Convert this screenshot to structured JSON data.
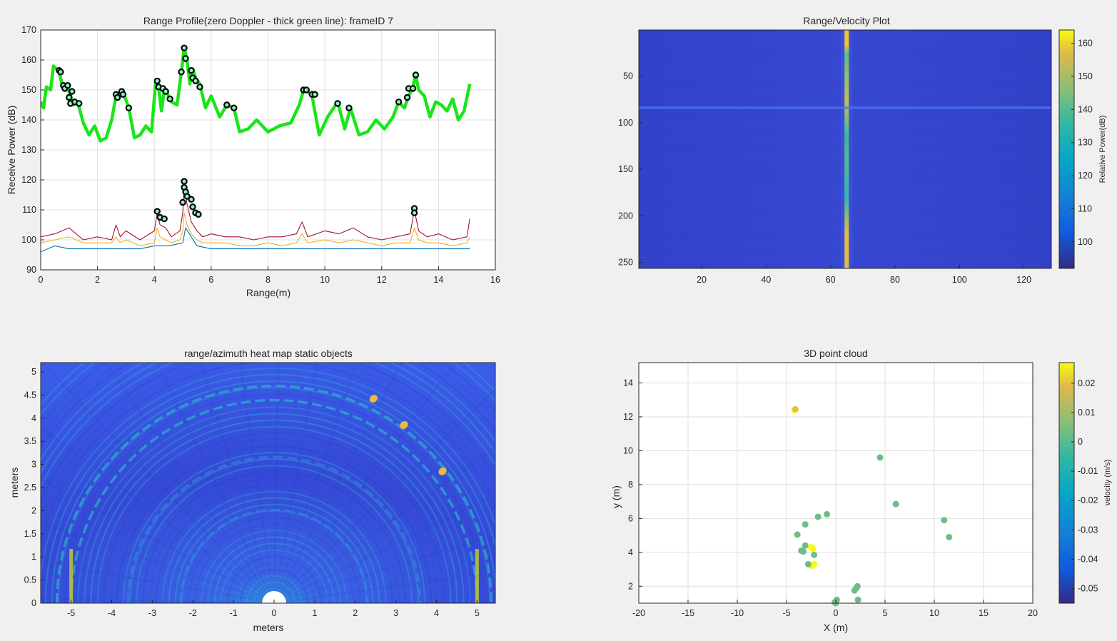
{
  "figure": {
    "background": "#f0f0f0"
  },
  "chart_data": [
    {
      "id": "range-profile",
      "type": "line",
      "title": "Range Profile(zero Doppler - thick green line): frameID 7",
      "xlabel": "Range(m)",
      "ylabel": "Receive Power (dB)",
      "xlim": [
        0,
        16
      ],
      "ylim": [
        90,
        170
      ],
      "xticks": [
        "0",
        "2",
        "4",
        "6",
        "8",
        "10",
        "12",
        "14",
        "16"
      ],
      "yticks": [
        "90",
        "100",
        "110",
        "120",
        "130",
        "140",
        "150",
        "160",
        "170"
      ],
      "grid": true,
      "series": [
        {
          "role": "zero-doppler",
          "color": "#19e619",
          "x": [
            0,
            0.1,
            0.2,
            0.35,
            0.45,
            0.55,
            0.65,
            0.75,
            0.85,
            0.95,
            1.05,
            1.15,
            1.3,
            1.5,
            1.7,
            1.9,
            2.1,
            2.3,
            2.5,
            2.65,
            2.75,
            2.85,
            2.95,
            3.1,
            3.3,
            3.5,
            3.7,
            3.9,
            4.05,
            4.15,
            4.25,
            4.35,
            4.45,
            4.6,
            4.8,
            4.95,
            5.05,
            5.15,
            5.25,
            5.35,
            5.45,
            5.6,
            5.8,
            6.0,
            6.3,
            6.55,
            6.8,
            7.0,
            7.3,
            7.6,
            8.0,
            8.4,
            8.8,
            9.1,
            9.25,
            9.35,
            9.55,
            9.8,
            10.1,
            10.45,
            10.7,
            10.9,
            11.2,
            11.5,
            11.8,
            12.1,
            12.4,
            12.6,
            12.8,
            12.95,
            13.1,
            13.2,
            13.3,
            13.5,
            13.7,
            13.9,
            14.1,
            14.3,
            14.5,
            14.7,
            14.9,
            15.1
          ],
          "y": [
            146,
            144,
            151,
            150,
            158,
            157,
            156,
            152,
            150,
            151,
            148,
            145,
            146,
            139,
            135,
            138,
            133,
            134,
            140,
            148,
            147,
            150,
            148,
            144,
            134,
            135,
            138,
            136,
            153,
            151,
            143,
            150,
            149,
            146,
            145,
            156,
            164,
            160,
            152,
            157,
            154,
            152,
            144,
            148,
            141,
            145,
            144,
            136,
            137,
            140,
            136,
            138,
            139,
            145,
            150,
            150,
            148,
            135,
            141,
            146,
            137,
            144,
            135,
            136,
            140,
            137,
            141,
            146,
            144,
            148,
            151,
            155,
            150,
            148,
            141,
            146,
            145,
            143,
            147,
            140,
            143,
            152
          ]
        },
        {
          "role": "doppler-max",
          "color": "#a2142f",
          "x": [
            0,
            0.5,
            1,
            1.5,
            2,
            2.5,
            2.65,
            2.8,
            3,
            3.5,
            4,
            4.1,
            4.2,
            4.4,
            4.6,
            4.9,
            5.0,
            5.05,
            5.15,
            5.3,
            5.5,
            5.7,
            6,
            6.5,
            7,
            7.5,
            8,
            8.5,
            9,
            9.2,
            9.4,
            10,
            10.5,
            11,
            11.5,
            12,
            12.5,
            13,
            13.15,
            13.3,
            13.6,
            14,
            14.5,
            15,
            15.1
          ],
          "y": [
            101,
            102,
            104,
            100,
            101,
            100,
            105,
            101,
            103,
            100,
            103,
            109,
            105,
            104,
            101,
            103,
            109,
            119,
            112,
            106,
            103,
            101,
            102,
            101,
            101,
            100,
            101,
            101,
            102,
            106,
            101,
            103,
            102,
            104,
            101,
            100,
            101,
            102,
            110,
            103,
            101,
            102,
            100,
            101,
            107
          ]
        },
        {
          "role": "doppler-mid",
          "color": "#edb120",
          "x": [
            0,
            0.5,
            1,
            1.5,
            2,
            2.5,
            2.65,
            2.8,
            3,
            3.5,
            4,
            4.1,
            4.2,
            4.4,
            4.6,
            4.9,
            5.0,
            5.05,
            5.15,
            5.3,
            5.5,
            5.7,
            6,
            6.5,
            7,
            7.5,
            8,
            8.5,
            9,
            9.2,
            9.4,
            10,
            10.5,
            11,
            11.5,
            12,
            12.5,
            13,
            13.15,
            13.3,
            13.6,
            14,
            14.5,
            15,
            15.1
          ],
          "y": [
            99,
            100,
            101,
            99,
            99,
            99,
            101,
            99,
            100,
            98,
            99,
            104,
            101,
            100,
            99,
            100,
            103,
            109,
            105,
            102,
            100,
            99,
            99,
            99,
            98,
            98,
            99,
            98,
            99,
            102,
            99,
            100,
            99,
            100,
            99,
            98,
            99,
            99,
            104,
            100,
            99,
            99,
            98,
            99,
            101
          ]
        },
        {
          "role": "doppler-low",
          "color": "#0072bd",
          "x": [
            0,
            0.5,
            1,
            1.5,
            2,
            2.5,
            3,
            3.5,
            4,
            4.5,
            5,
            5.1,
            5.5,
            6,
            7,
            8,
            9,
            10,
            11,
            12,
            13,
            14,
            15,
            15.1
          ],
          "y": [
            96,
            98,
            97,
            97,
            97,
            97,
            97,
            97,
            98,
            98,
            99,
            104,
            98,
            97,
            97,
            97,
            97,
            97,
            97,
            97,
            97,
            97,
            97,
            97
          ]
        }
      ],
      "detected_points": [
        {
          "x": 0.65,
          "y": 156.5
        },
        {
          "x": 0.7,
          "y": 156
        },
        {
          "x": 0.8,
          "y": 151.5
        },
        {
          "x": 0.85,
          "y": 150.5
        },
        {
          "x": 0.95,
          "y": 151.5
        },
        {
          "x": 1.0,
          "y": 147.5
        },
        {
          "x": 1.05,
          "y": 145.5
        },
        {
          "x": 1.1,
          "y": 149.5
        },
        {
          "x": 1.2,
          "y": 146
        },
        {
          "x": 1.35,
          "y": 145.5
        },
        {
          "x": 2.65,
          "y": 148.5
        },
        {
          "x": 2.7,
          "y": 147.5
        },
        {
          "x": 2.85,
          "y": 149.5
        },
        {
          "x": 2.9,
          "y": 148.5
        },
        {
          "x": 3.1,
          "y": 144
        },
        {
          "x": 4.1,
          "y": 153
        },
        {
          "x": 4.15,
          "y": 151
        },
        {
          "x": 4.3,
          "y": 150.5
        },
        {
          "x": 4.4,
          "y": 149.5
        },
        {
          "x": 4.55,
          "y": 147
        },
        {
          "x": 4.95,
          "y": 156
        },
        {
          "x": 5.05,
          "y": 164
        },
        {
          "x": 5.1,
          "y": 160.5
        },
        {
          "x": 5.3,
          "y": 156.5
        },
        {
          "x": 5.35,
          "y": 154
        },
        {
          "x": 5.45,
          "y": 153
        },
        {
          "x": 5.6,
          "y": 151
        },
        {
          "x": 6.55,
          "y": 145
        },
        {
          "x": 6.8,
          "y": 144
        },
        {
          "x": 9.25,
          "y": 150
        },
        {
          "x": 9.35,
          "y": 150
        },
        {
          "x": 9.55,
          "y": 148.5
        },
        {
          "x": 9.65,
          "y": 148.5
        },
        {
          "x": 10.45,
          "y": 145.5
        },
        {
          "x": 10.85,
          "y": 144
        },
        {
          "x": 12.6,
          "y": 146
        },
        {
          "x": 12.9,
          "y": 147.5
        },
        {
          "x": 12.95,
          "y": 150.5
        },
        {
          "x": 13.1,
          "y": 150.5
        },
        {
          "x": 13.2,
          "y": 155
        },
        {
          "x": 4.1,
          "y": 109.5
        },
        {
          "x": 4.2,
          "y": 107.5
        },
        {
          "x": 4.35,
          "y": 107
        },
        {
          "x": 5.0,
          "y": 112.5
        },
        {
          "x": 5.05,
          "y": 119.5
        },
        {
          "x": 5.05,
          "y": 117.5
        },
        {
          "x": 5.1,
          "y": 116
        },
        {
          "x": 5.15,
          "y": 114.5
        },
        {
          "x": 5.3,
          "y": 113.5
        },
        {
          "x": 5.35,
          "y": 111
        },
        {
          "x": 5.45,
          "y": 109
        },
        {
          "x": 5.55,
          "y": 108.5
        },
        {
          "x": 13.15,
          "y": 110.5
        },
        {
          "x": 13.15,
          "y": 109
        }
      ]
    },
    {
      "id": "range-velocity",
      "type": "heatmap",
      "title": "Range/Velocity Plot",
      "xlim": [
        1,
        128
      ],
      "ylim": [
        1,
        256
      ],
      "y_reversed": true,
      "xticks": [
        "20",
        "40",
        "60",
        "80",
        "100",
        "120"
      ],
      "yticks": [
        "50",
        "100",
        "150",
        "200",
        "250"
      ],
      "zero_velocity_column": 65,
      "highlight_row": 84,
      "colorbar": {
        "label": "Relative Power(dB)",
        "range": [
          92,
          164
        ],
        "ticks": [
          "100",
          "110",
          "120",
          "130",
          "140",
          "150",
          "160"
        ]
      }
    },
    {
      "id": "range-azimuth",
      "type": "heatmap",
      "title": "range/azimuth heat map static objects",
      "xlabel": "meters",
      "ylabel": "meters",
      "xlim": [
        -5.75,
        5.45
      ],
      "ylim": [
        0,
        5.2
      ],
      "xticks": [
        "-5",
        "-4",
        "-3",
        "-2",
        "-1",
        "0",
        "1",
        "2",
        "3",
        "4",
        "5"
      ],
      "yticks": [
        "0",
        "0.5",
        "1",
        "1.5",
        "2",
        "2.5",
        "3",
        "3.5",
        "4",
        "4.5",
        "5"
      ],
      "hotspots": [
        {
          "x": 2.45,
          "y": 4.42
        },
        {
          "x": 3.2,
          "y": 3.85
        },
        {
          "x": 4.15,
          "y": 2.85
        },
        {
          "x": -5.0,
          "y": 0.4
        },
        {
          "x": 5.0,
          "y": 0.4
        }
      ]
    },
    {
      "id": "point-cloud",
      "type": "scatter",
      "title": "3D point cloud",
      "xlabel": "X (m)",
      "ylabel": "y (m)",
      "xlim": [
        -20,
        20
      ],
      "ylim": [
        1,
        15.2
      ],
      "xticks": [
        "-20",
        "-15",
        "-10",
        "-5",
        "0",
        "5",
        "10",
        "15",
        "20"
      ],
      "yticks": [
        "2",
        "4",
        "6",
        "8",
        "10",
        "12",
        "14"
      ],
      "grid": true,
      "points": [
        {
          "x": -4.2,
          "y": 12.4,
          "v": 0.028
        },
        {
          "x": -4.1,
          "y": 12.45,
          "v": 0.02
        },
        {
          "x": 4.5,
          "y": 9.6,
          "v": 0.003
        },
        {
          "x": 6.1,
          "y": 6.85,
          "v": 0.003
        },
        {
          "x": -0.9,
          "y": 6.25,
          "v": 0.003
        },
        {
          "x": -1.8,
          "y": 6.1,
          "v": 0.003
        },
        {
          "x": -3.1,
          "y": 5.65,
          "v": 0.003
        },
        {
          "x": -3.9,
          "y": 5.05,
          "v": 0.003
        },
        {
          "x": 11.0,
          "y": 5.9,
          "v": 0.003
        },
        {
          "x": 11.5,
          "y": 4.9,
          "v": 0.003
        },
        {
          "x": -3.1,
          "y": 4.4,
          "v": 0.003
        },
        {
          "x": -3.5,
          "y": 4.1,
          "v": 0.003
        },
        {
          "x": -3.3,
          "y": 4.05,
          "v": 0.003
        },
        {
          "x": -2.5,
          "y": 4.3,
          "v": 0.028
        },
        {
          "x": -2.3,
          "y": 4.2,
          "v": 0.028
        },
        {
          "x": -2.2,
          "y": 3.85,
          "v": 0.003
        },
        {
          "x": -2.6,
          "y": 3.25,
          "v": 0.028
        },
        {
          "x": -2.4,
          "y": 3.2,
          "v": 0.028
        },
        {
          "x": -2.2,
          "y": 3.3,
          "v": 0.028
        },
        {
          "x": -2.8,
          "y": 3.3,
          "v": 0.003
        },
        {
          "x": 1.9,
          "y": 1.75,
          "v": 0.003
        },
        {
          "x": 2.1,
          "y": 1.9,
          "v": 0.003
        },
        {
          "x": 2.2,
          "y": 2.0,
          "v": 0.003
        },
        {
          "x": 2.25,
          "y": 1.2,
          "v": 0.003
        },
        {
          "x": 0.1,
          "y": 1.2,
          "v": 0.003
        },
        {
          "x": 0.0,
          "y": 1.0,
          "v": 0.003
        },
        {
          "x": -0.1,
          "y": 1.05,
          "v": 0.003
        }
      ],
      "colorbar": {
        "label": "velocity (m/s)",
        "range": [
          -0.055,
          0.027
        ],
        "ticks": [
          "-0.05",
          "-0.04",
          "-0.03",
          "-0.02",
          "-0.01",
          "0",
          "0.01",
          "0.02"
        ]
      }
    }
  ]
}
